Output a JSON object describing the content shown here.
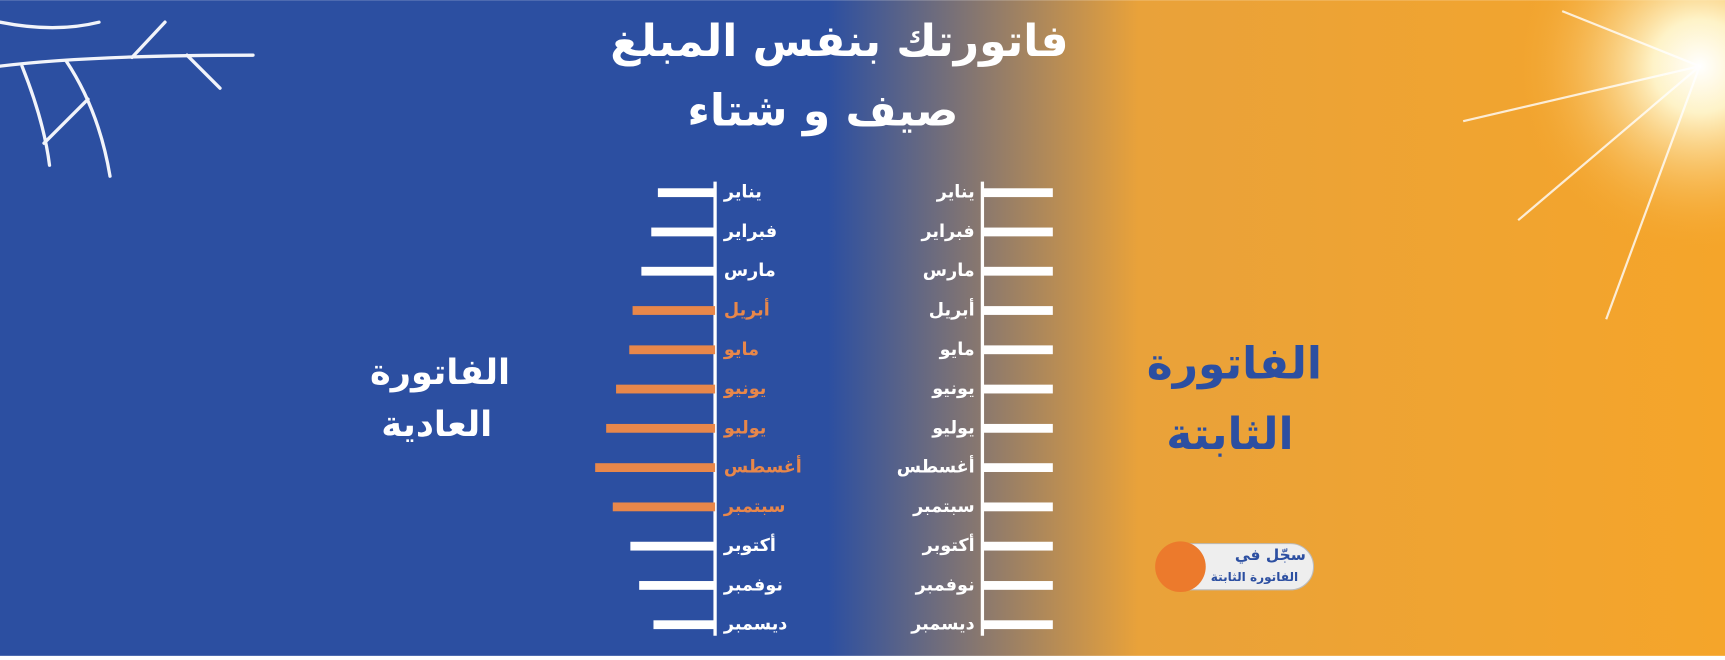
{
  "headline": [
    "فاتورتك بنفس المبلغ",
    "صيف و شتاء"
  ],
  "left_label": [
    "الفاتورة",
    "العادية"
  ],
  "right_label": [
    "الفاتورة",
    "الثابتة"
  ],
  "button": [
    "سجّل في",
    "الفاتورة الثابتة"
  ],
  "chart_data": [
    {
      "type": "bar",
      "orientation": "horizontal",
      "categories": [
        "يناير",
        "فبراير",
        "مارس",
        "أبريل",
        "مايو",
        "يونيو",
        "يوليو",
        "أغسطس",
        "سبتمبر",
        "أكتوبر",
        "نوفمبر",
        "ديسمبر"
      ],
      "values": [
        52,
        58,
        67,
        75,
        78,
        90,
        99,
        109,
        93,
        77,
        69,
        56
      ],
      "colors": [
        "#ffffff",
        "#ffffff",
        "#ffffff",
        "#e8874a",
        "#e8874a",
        "#e8874a",
        "#e8874a",
        "#e8874a",
        "#e8874a",
        "#ffffff",
        "#ffffff",
        "#ffffff"
      ],
      "xlim": [
        0,
        110
      ]
    },
    {
      "type": "bar",
      "orientation": "horizontal",
      "categories": [
        "يناير",
        "فبراير",
        "مارس",
        "أبريل",
        "مايو",
        "يونيو",
        "يوليو",
        "أغسطس",
        "سبتمبر",
        "أكتوبر",
        "نوفمبر",
        "ديسمبر"
      ],
      "values": [
        64,
        64,
        64,
        64,
        64,
        64,
        64,
        64,
        64,
        64,
        64,
        64
      ],
      "colors": [
        "#ffffff",
        "#ffffff",
        "#ffffff",
        "#ffffff",
        "#ffffff",
        "#ffffff",
        "#ffffff",
        "#ffffff",
        "#ffffff",
        "#ffffff",
        "#ffffff",
        "#ffffff"
      ],
      "xlim": [
        0,
        110
      ]
    }
  ]
}
